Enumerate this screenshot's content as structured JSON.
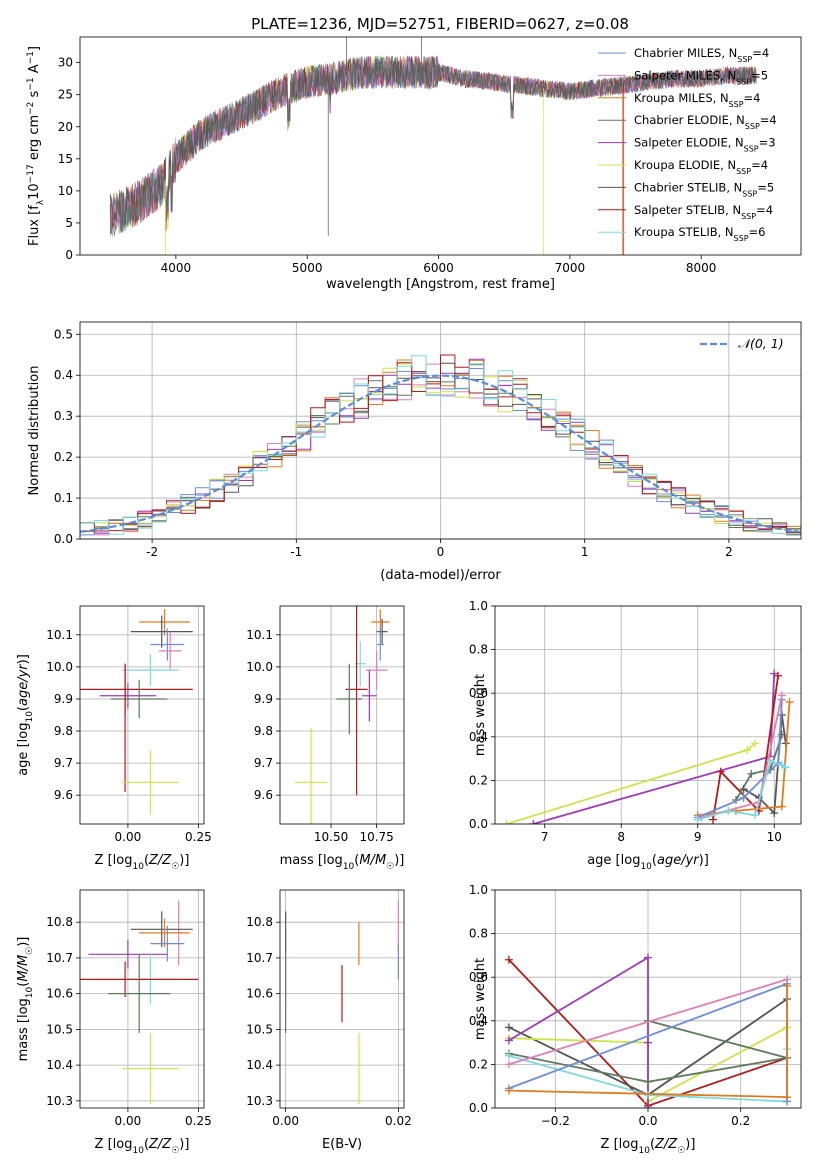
{
  "figure": {
    "title": "PLATE=1236, MJD=52751, FIBERID=0627, z=0.08"
  },
  "palette": {
    "Chabrier MILES": "#6a8fd8",
    "Salpeter MILES": "#e07fb8",
    "Kroupa MILES": "#e07b1f",
    "Chabrier ELODIE": "#5f7a5f",
    "Salpeter ELODIE": "#9b3bb8",
    "Kroupa ELODIE": "#cde34a",
    "Chabrier STELIB": "#555555",
    "Salpeter STELIB": "#b01c1c",
    "Kroupa STELIB": "#7ed8dc"
  },
  "chart_data": [
    {
      "id": "spectrum",
      "type": "line",
      "title": "PLATE=1236, MJD=52751, FIBERID=0627, z=0.08",
      "xlabel": "wavelength [Angstrom, rest frame]",
      "ylabel": "Flux [f_λ 10^-17 erg cm^-2 s^-1 A^-1]",
      "xlim": [
        3270,
        8760
      ],
      "ylim": [
        0,
        34
      ],
      "xticks": [
        4000,
        5000,
        6000,
        7000,
        8000
      ],
      "yticks": [
        0,
        5,
        10,
        15,
        20,
        25,
        30
      ],
      "grid": false,
      "legend_position": "right",
      "x_range_data": [
        3500,
        8420
      ],
      "continuum": {
        "x": [
          3500,
          3700,
          3900,
          4000,
          4200,
          4500,
          4800,
          5000,
          5200,
          5400,
          5600,
          5800,
          6000,
          6200,
          6400,
          6600,
          6800,
          7000,
          7200,
          7400,
          7600,
          7800,
          8000,
          8200,
          8420
        ],
        "y": [
          6,
          8,
          11,
          15,
          19,
          22,
          25.5,
          27,
          27.5,
          28.5,
          28.5,
          28.5,
          28.5,
          27.5,
          27,
          26.5,
          26,
          25.5,
          26,
          26.5,
          27,
          27.5,
          27.5,
          28,
          28
        ]
      },
      "series": [
        {
          "name": "Chabrier MILES, N_SSP=4",
          "legend_label": "Chabrier MILES, N",
          "legend_sub": "SSP",
          "legend_tail": "=4",
          "color_key": "Chabrier MILES"
        },
        {
          "name": "Salpeter MILES, N_SSP=5",
          "legend_label": "Salpeter MILES, N",
          "legend_sub": "SSP",
          "legend_tail": "=5",
          "color_key": "Salpeter MILES"
        },
        {
          "name": "Kroupa MILES, N_SSP=4",
          "legend_label": "Kroupa MILES, N",
          "legend_sub": "SSP",
          "legend_tail": "=4",
          "color_key": "Kroupa MILES"
        },
        {
          "name": "Chabrier ELODIE, N_SSP=4",
          "legend_label": "Chabrier ELODIE, N",
          "legend_sub": "SSP",
          "legend_tail": "=4",
          "color_key": "Chabrier ELODIE"
        },
        {
          "name": "Salpeter ELODIE, N_SSP=3",
          "legend_label": "Salpeter ELODIE, N",
          "legend_sub": "SSP",
          "legend_tail": "=3",
          "color_key": "Salpeter ELODIE"
        },
        {
          "name": "Kroupa ELODIE, N_SSP=4",
          "legend_label": "Kroupa ELODIE, N",
          "legend_sub": "SSP",
          "legend_tail": "=4",
          "color_key": "Kroupa ELODIE"
        },
        {
          "name": "Chabrier STELIB, N_SSP=5",
          "legend_label": "Chabrier STELIB, N",
          "legend_sub": "SSP",
          "legend_tail": "=5",
          "color_key": "Chabrier STELIB"
        },
        {
          "name": "Salpeter STELIB, N_SSP=4",
          "legend_label": "Salpeter STELIB, N",
          "legend_sub": "SSP",
          "legend_tail": "=4",
          "color_key": "Salpeter STELIB"
        },
        {
          "name": "Kroupa STELIB, N_SSP=6",
          "legend_label": "Kroupa STELIB, N",
          "legend_sub": "SSP",
          "legend_tail": "=6",
          "color_key": "Kroupa STELIB"
        }
      ]
    },
    {
      "id": "residuals",
      "type": "histogram",
      "xlabel": "(data-model)/error",
      "ylabel": "Normed distribution",
      "xlim": [
        -2.5,
        2.5
      ],
      "ylim": [
        0,
        0.53
      ],
      "xticks": [
        -2,
        -1,
        0,
        1,
        2
      ],
      "yticks": [
        0.0,
        0.1,
        0.2,
        0.3,
        0.4,
        0.5
      ],
      "grid": true,
      "legend_position": "top-right",
      "reference_curve": {
        "label": "𝒩(0, 1)",
        "color": "#5a8fd6"
      },
      "bin_width": 0.1
    },
    {
      "id": "age-vs-Z",
      "type": "errorbar",
      "xlabel": "Z [log10(Z/Z☉)]",
      "ylabel": "age [log10(age/yr)]",
      "xlim": [
        -0.17,
        0.27
      ],
      "ylim": [
        9.51,
        10.19
      ],
      "xticks": [
        0.0,
        0.25
      ],
      "xtick_labels": [
        "0.00",
        "0.25"
      ],
      "yticks": [
        9.6,
        9.7,
        9.8,
        9.9,
        10.0,
        10.1
      ],
      "grid": true,
      "points": [
        {
          "color_key": "Kroupa MILES",
          "x": 0.13,
          "xerr": 0.09,
          "y": 10.14,
          "yerr": 0.04
        },
        {
          "color_key": "Chabrier STELIB",
          "x": 0.12,
          "xerr": 0.11,
          "y": 10.11,
          "yerr": 0.05
        },
        {
          "color_key": "Chabrier MILES",
          "x": 0.14,
          "xerr": 0.06,
          "y": 10.07,
          "yerr": 0.05
        },
        {
          "color_key": "Salpeter MILES",
          "x": 0.15,
          "xerr": 0.04,
          "y": 10.05,
          "yerr": 0.06
        },
        {
          "color_key": "Kroupa STELIB",
          "x": 0.08,
          "xerr": 0.1,
          "y": 9.99,
          "yerr": 0.05
        },
        {
          "color_key": "Salpeter STELIB",
          "x": -0.01,
          "xerr": 0.24,
          "y": 9.93,
          "yerr": 0.08
        },
        {
          "color_key": "Salpeter ELODIE",
          "x": 0.0,
          "xerr": 0.1,
          "y": 9.91,
          "yerr": 0.04
        },
        {
          "color_key": "Chabrier ELODIE",
          "x": 0.04,
          "xerr": 0.1,
          "y": 9.9,
          "yerr": 0.06
        },
        {
          "color_key": "Salpeter STELIB",
          "x": -0.01,
          "xerr": 0.0,
          "y": 9.81,
          "yerr": 0.2
        },
        {
          "color_key": "Kroupa ELODIE",
          "x": 0.08,
          "xerr": 0.1,
          "y": 9.64,
          "yerr": 0.1
        }
      ]
    },
    {
      "id": "age-vs-mass",
      "type": "errorbar",
      "xlabel": "mass [log10(M/M☉)]",
      "ylabel": "",
      "xlim": [
        10.22,
        10.9
      ],
      "ylim": [
        9.51,
        10.19
      ],
      "xticks": [
        10.5,
        10.75
      ],
      "xtick_labels": [
        "10.50",
        "10.75"
      ],
      "yticks": [
        9.6,
        9.7,
        9.8,
        9.9,
        10.0,
        10.1
      ],
      "grid": true,
      "points": [
        {
          "color_key": "Kroupa MILES",
          "x": 10.77,
          "xerr": 0.05,
          "y": 10.14,
          "yerr": 0.04
        },
        {
          "color_key": "Chabrier STELIB",
          "x": 10.78,
          "xerr": 0.03,
          "y": 10.11,
          "yerr": 0.04
        },
        {
          "color_key": "Chabrier MILES",
          "x": 10.77,
          "xerr": 0.02,
          "y": 10.07,
          "yerr": 0.05
        },
        {
          "color_key": "Kroupa STELIB",
          "x": 10.66,
          "xerr": 0.03,
          "y": 10.01,
          "yerr": 0.07
        },
        {
          "color_key": "Salpeter MILES",
          "x": 10.75,
          "xerr": 0.06,
          "y": 9.99,
          "yerr": 0.06
        },
        {
          "color_key": "Salpeter STELIB",
          "x": 10.64,
          "xerr": 0.06,
          "y": 9.93,
          "yerr": 0.33
        },
        {
          "color_key": "Salpeter ELODIE",
          "x": 10.71,
          "xerr": 0.04,
          "y": 9.91,
          "yerr": 0.08
        },
        {
          "color_key": "Chabrier ELODIE",
          "x": 10.6,
          "xerr": 0.07,
          "y": 9.9,
          "yerr": 0.11
        },
        {
          "color_key": "Kroupa ELODIE",
          "x": 10.39,
          "xerr": 0.09,
          "y": 9.64,
          "yerr": 0.17
        }
      ]
    },
    {
      "id": "weight-vs-age",
      "type": "line",
      "xlabel": "age [log10(age/yr)]",
      "ylabel": "mass weight",
      "xlim": [
        6.35,
        10.35
      ],
      "ylim": [
        0,
        1.0
      ],
      "xticks": [
        7,
        8,
        9,
        10
      ],
      "yticks": [
        0.0,
        0.2,
        0.4,
        0.6,
        0.8,
        1.0
      ],
      "grid": true,
      "series": [
        {
          "color_key": "Kroupa ELODIE",
          "x": [
            6.5,
            9.65,
            9.75
          ],
          "y": [
            0.0,
            0.34,
            0.37
          ]
        },
        {
          "color_key": "Salpeter ELODIE",
          "x": [
            6.85,
            9.95,
            10.0
          ],
          "y": [
            0.0,
            0.31,
            0.69
          ]
        },
        {
          "color_key": "Salpeter STELIB",
          "x": [
            9.2,
            9.3,
            9.8,
            10.05
          ],
          "y": [
            0.02,
            0.24,
            0.06,
            0.68
          ]
        },
        {
          "color_key": "Chabrier ELODIE",
          "x": [
            9.5,
            9.7,
            9.95,
            10.1
          ],
          "y": [
            0.11,
            0.23,
            0.25,
            0.41
          ]
        },
        {
          "color_key": "Chabrier STELIB",
          "x": [
            9.6,
            9.8,
            10.0,
            10.1,
            10.15
          ],
          "y": [
            0.16,
            0.12,
            0.05,
            0.5,
            0.37
          ]
        },
        {
          "color_key": "Kroupa MILES",
          "x": [
            9.0,
            9.5,
            10.1,
            10.2
          ],
          "y": [
            0.04,
            0.06,
            0.08,
            0.56
          ]
        },
        {
          "color_key": "Chabrier MILES",
          "x": [
            9.0,
            9.6,
            10.05,
            10.1
          ],
          "y": [
            0.03,
            0.12,
            0.28,
            0.57
          ]
        },
        {
          "color_key": "Salpeter MILES",
          "x": [
            9.05,
            9.8,
            10.1
          ],
          "y": [
            0.03,
            0.1,
            0.59
          ]
        },
        {
          "color_key": "Kroupa STELIB",
          "x": [
            9.0,
            9.4,
            9.75,
            9.95,
            10.1,
            10.15
          ],
          "y": [
            0.02,
            0.06,
            0.04,
            0.29,
            0.27,
            0.26
          ]
        }
      ]
    },
    {
      "id": "mass-vs-Z",
      "type": "errorbar",
      "xlabel": "Z [log10(Z/Z☉)]",
      "ylabel": "mass [log10(M/M☉)]",
      "xlim": [
        -0.17,
        0.27
      ],
      "ylim": [
        10.28,
        10.89
      ],
      "xticks": [
        0.0,
        0.25
      ],
      "xtick_labels": [
        "0.00",
        "0.25"
      ],
      "yticks": [
        10.3,
        10.4,
        10.5,
        10.6,
        10.7,
        10.8
      ],
      "grid": true,
      "points": [
        {
          "color_key": "Salpeter MILES",
          "x": 0.18,
          "xerr": 0.02,
          "y": 10.77,
          "yerr": 0.09
        },
        {
          "color_key": "Chabrier STELIB",
          "x": 0.12,
          "xerr": 0.11,
          "y": 10.78,
          "yerr": 0.05
        },
        {
          "color_key": "Kroupa MILES",
          "x": 0.13,
          "xerr": 0.09,
          "y": 10.77,
          "yerr": 0.04
        },
        {
          "color_key": "Chabrier MILES",
          "x": 0.14,
          "xerr": 0.06,
          "y": 10.74,
          "yerr": 0.05
        },
        {
          "color_key": "Salpeter ELODIE",
          "x": 0.0,
          "xerr": 0.14,
          "y": 10.71,
          "yerr": 0.04
        },
        {
          "color_key": "Kroupa STELIB",
          "x": 0.08,
          "xerr": 0.1,
          "y": 10.64,
          "yerr": 0.07
        },
        {
          "color_key": "Salpeter STELIB",
          "x": -0.01,
          "xerr": 0.26,
          "y": 10.64,
          "yerr": 0.05
        },
        {
          "color_key": "Chabrier ELODIE",
          "x": 0.04,
          "xerr": 0.11,
          "y": 10.6,
          "yerr": 0.11
        },
        {
          "color_key": "Kroupa ELODIE",
          "x": 0.08,
          "xerr": 0.1,
          "y": 10.39,
          "yerr": 0.1
        }
      ]
    },
    {
      "id": "mass-vs-EBV",
      "type": "errorbar",
      "xlabel": "E(B-V)",
      "ylabel": "",
      "xlim": [
        -0.001,
        0.021
      ],
      "ylim": [
        10.28,
        10.89
      ],
      "xticks": [
        0.0,
        0.02
      ],
      "xtick_labels": [
        "0.00",
        "0.02"
      ],
      "yticks": [
        10.3,
        10.4,
        10.5,
        10.6,
        10.7,
        10.8
      ],
      "grid": true,
      "points": [
        {
          "color_key": "Chabrier STELIB",
          "x": 0.0,
          "xerr": 0.0,
          "y": 10.77,
          "yerr": 0.06
        },
        {
          "color_key": "Kroupa STELIB",
          "x": 0.0,
          "xerr": 0.0,
          "y": 10.64,
          "yerr": 0.07
        },
        {
          "color_key": "Chabrier ELODIE",
          "x": 0.0,
          "xerr": 0.0,
          "y": 10.6,
          "yerr": 0.11
        },
        {
          "color_key": "Salpeter STELIB",
          "x": 0.01,
          "xerr": 0.0,
          "y": 10.6,
          "yerr": 0.08
        },
        {
          "color_key": "Kroupa MILES",
          "x": 0.013,
          "xerr": 0.0,
          "y": 10.74,
          "yerr": 0.06
        },
        {
          "color_key": "Kroupa ELODIE",
          "x": 0.013,
          "xerr": 0.0,
          "y": 10.39,
          "yerr": 0.1
        },
        {
          "color_key": "Salpeter MILES",
          "x": 0.02,
          "xerr": 0.0,
          "y": 10.79,
          "yerr": 0.07
        },
        {
          "color_key": "Chabrier MILES",
          "x": 0.02,
          "xerr": 0.0,
          "y": 10.69,
          "yerr": 0.05
        }
      ]
    },
    {
      "id": "weight-vs-Z",
      "type": "line",
      "xlabel": "Z [log10(Z/Z☉)]",
      "ylabel": "mass weight",
      "xlim": [
        -0.33,
        0.33
      ],
      "ylim": [
        0,
        1.0
      ],
      "xticks": [
        -0.2,
        0.0,
        0.2
      ],
      "xtick_labels": [
        "−0.2",
        "0.0",
        "0.2"
      ],
      "yticks": [
        0.0,
        0.2,
        0.4,
        0.6,
        0.8,
        1.0
      ],
      "grid": true,
      "series": [
        {
          "color_key": "Salpeter STELIB",
          "x": [
            -0.3,
            0.0,
            0.3
          ],
          "y": [
            0.68,
            0.01,
            0.23
          ]
        },
        {
          "color_key": "Chabrier STELIB",
          "x": [
            -0.3,
            0.0,
            0.3,
            0.3
          ],
          "y": [
            0.37,
            0.06,
            0.5,
            0.05
          ]
        },
        {
          "color_key": "Kroupa ELODIE",
          "x": [
            -0.3,
            0.0,
            0.0,
            0.3
          ],
          "y": [
            0.32,
            0.3,
            0.03,
            0.37
          ]
        },
        {
          "color_key": "Salpeter ELODIE",
          "x": [
            -0.3,
            0.0,
            0.0,
            0.0
          ],
          "y": [
            0.31,
            0.69,
            0.0,
            0.3
          ]
        },
        {
          "color_key": "Chabrier ELODIE",
          "x": [
            -0.3,
            0.0,
            0.3,
            0.0
          ],
          "y": [
            0.25,
            0.12,
            0.23,
            0.4
          ]
        },
        {
          "color_key": "Kroupa STELIB",
          "x": [
            -0.3,
            0.0,
            0.3,
            0.3
          ],
          "y": [
            0.24,
            0.06,
            0.03,
            0.27
          ]
        },
        {
          "color_key": "Salpeter MILES",
          "x": [
            -0.3,
            0.3
          ],
          "y": [
            0.2,
            0.59
          ]
        },
        {
          "color_key": "Chabrier MILES",
          "x": [
            -0.3,
            0.3,
            0.3
          ],
          "y": [
            0.09,
            0.57,
            0.03
          ]
        },
        {
          "color_key": "Kroupa MILES",
          "x": [
            -0.3,
            0.3,
            0.3
          ],
          "y": [
            0.08,
            0.05,
            0.56
          ]
        }
      ]
    }
  ]
}
